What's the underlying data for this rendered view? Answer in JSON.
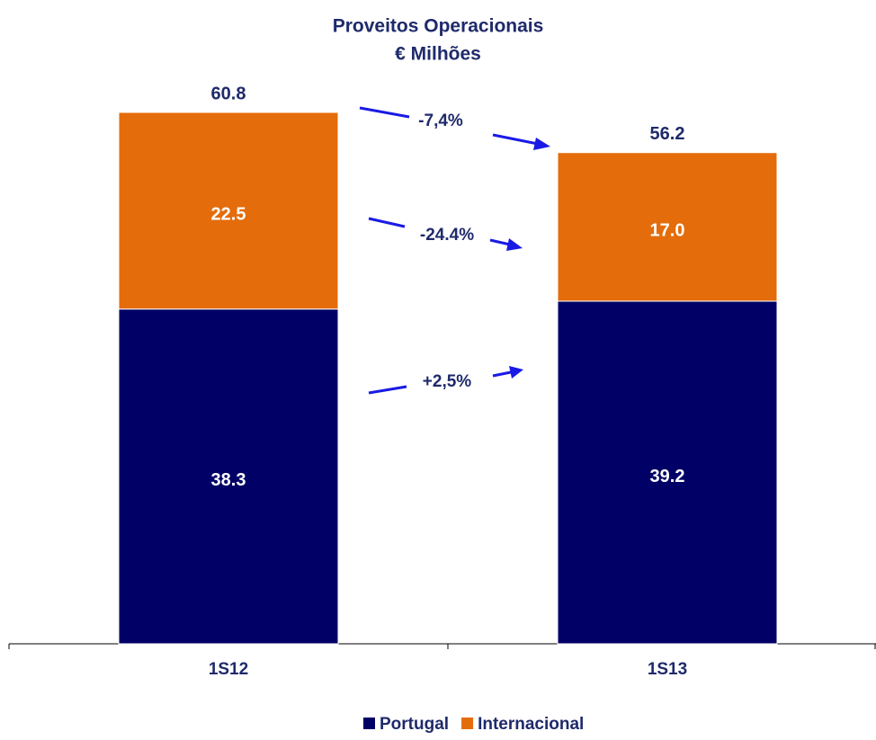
{
  "chart_data": {
    "type": "stacked_bar",
    "title": "Proveitos Operacionais",
    "subtitle": "€ Milhões",
    "categories": [
      "1S12",
      "1S13"
    ],
    "series": [
      {
        "name": "Portugal",
        "color": "#000066",
        "values": [
          38.3,
          39.2
        ]
      },
      {
        "name": "Internacional",
        "color": "#e46c0a",
        "values": [
          22.5,
          17.0
        ],
        "value_labels": [
          "22.5",
          "17.0"
        ]
      }
    ],
    "totals": [
      60.8,
      56.2
    ],
    "annotations": [
      "-7,4%",
      "-24.4%",
      "+2,5%"
    ]
  }
}
